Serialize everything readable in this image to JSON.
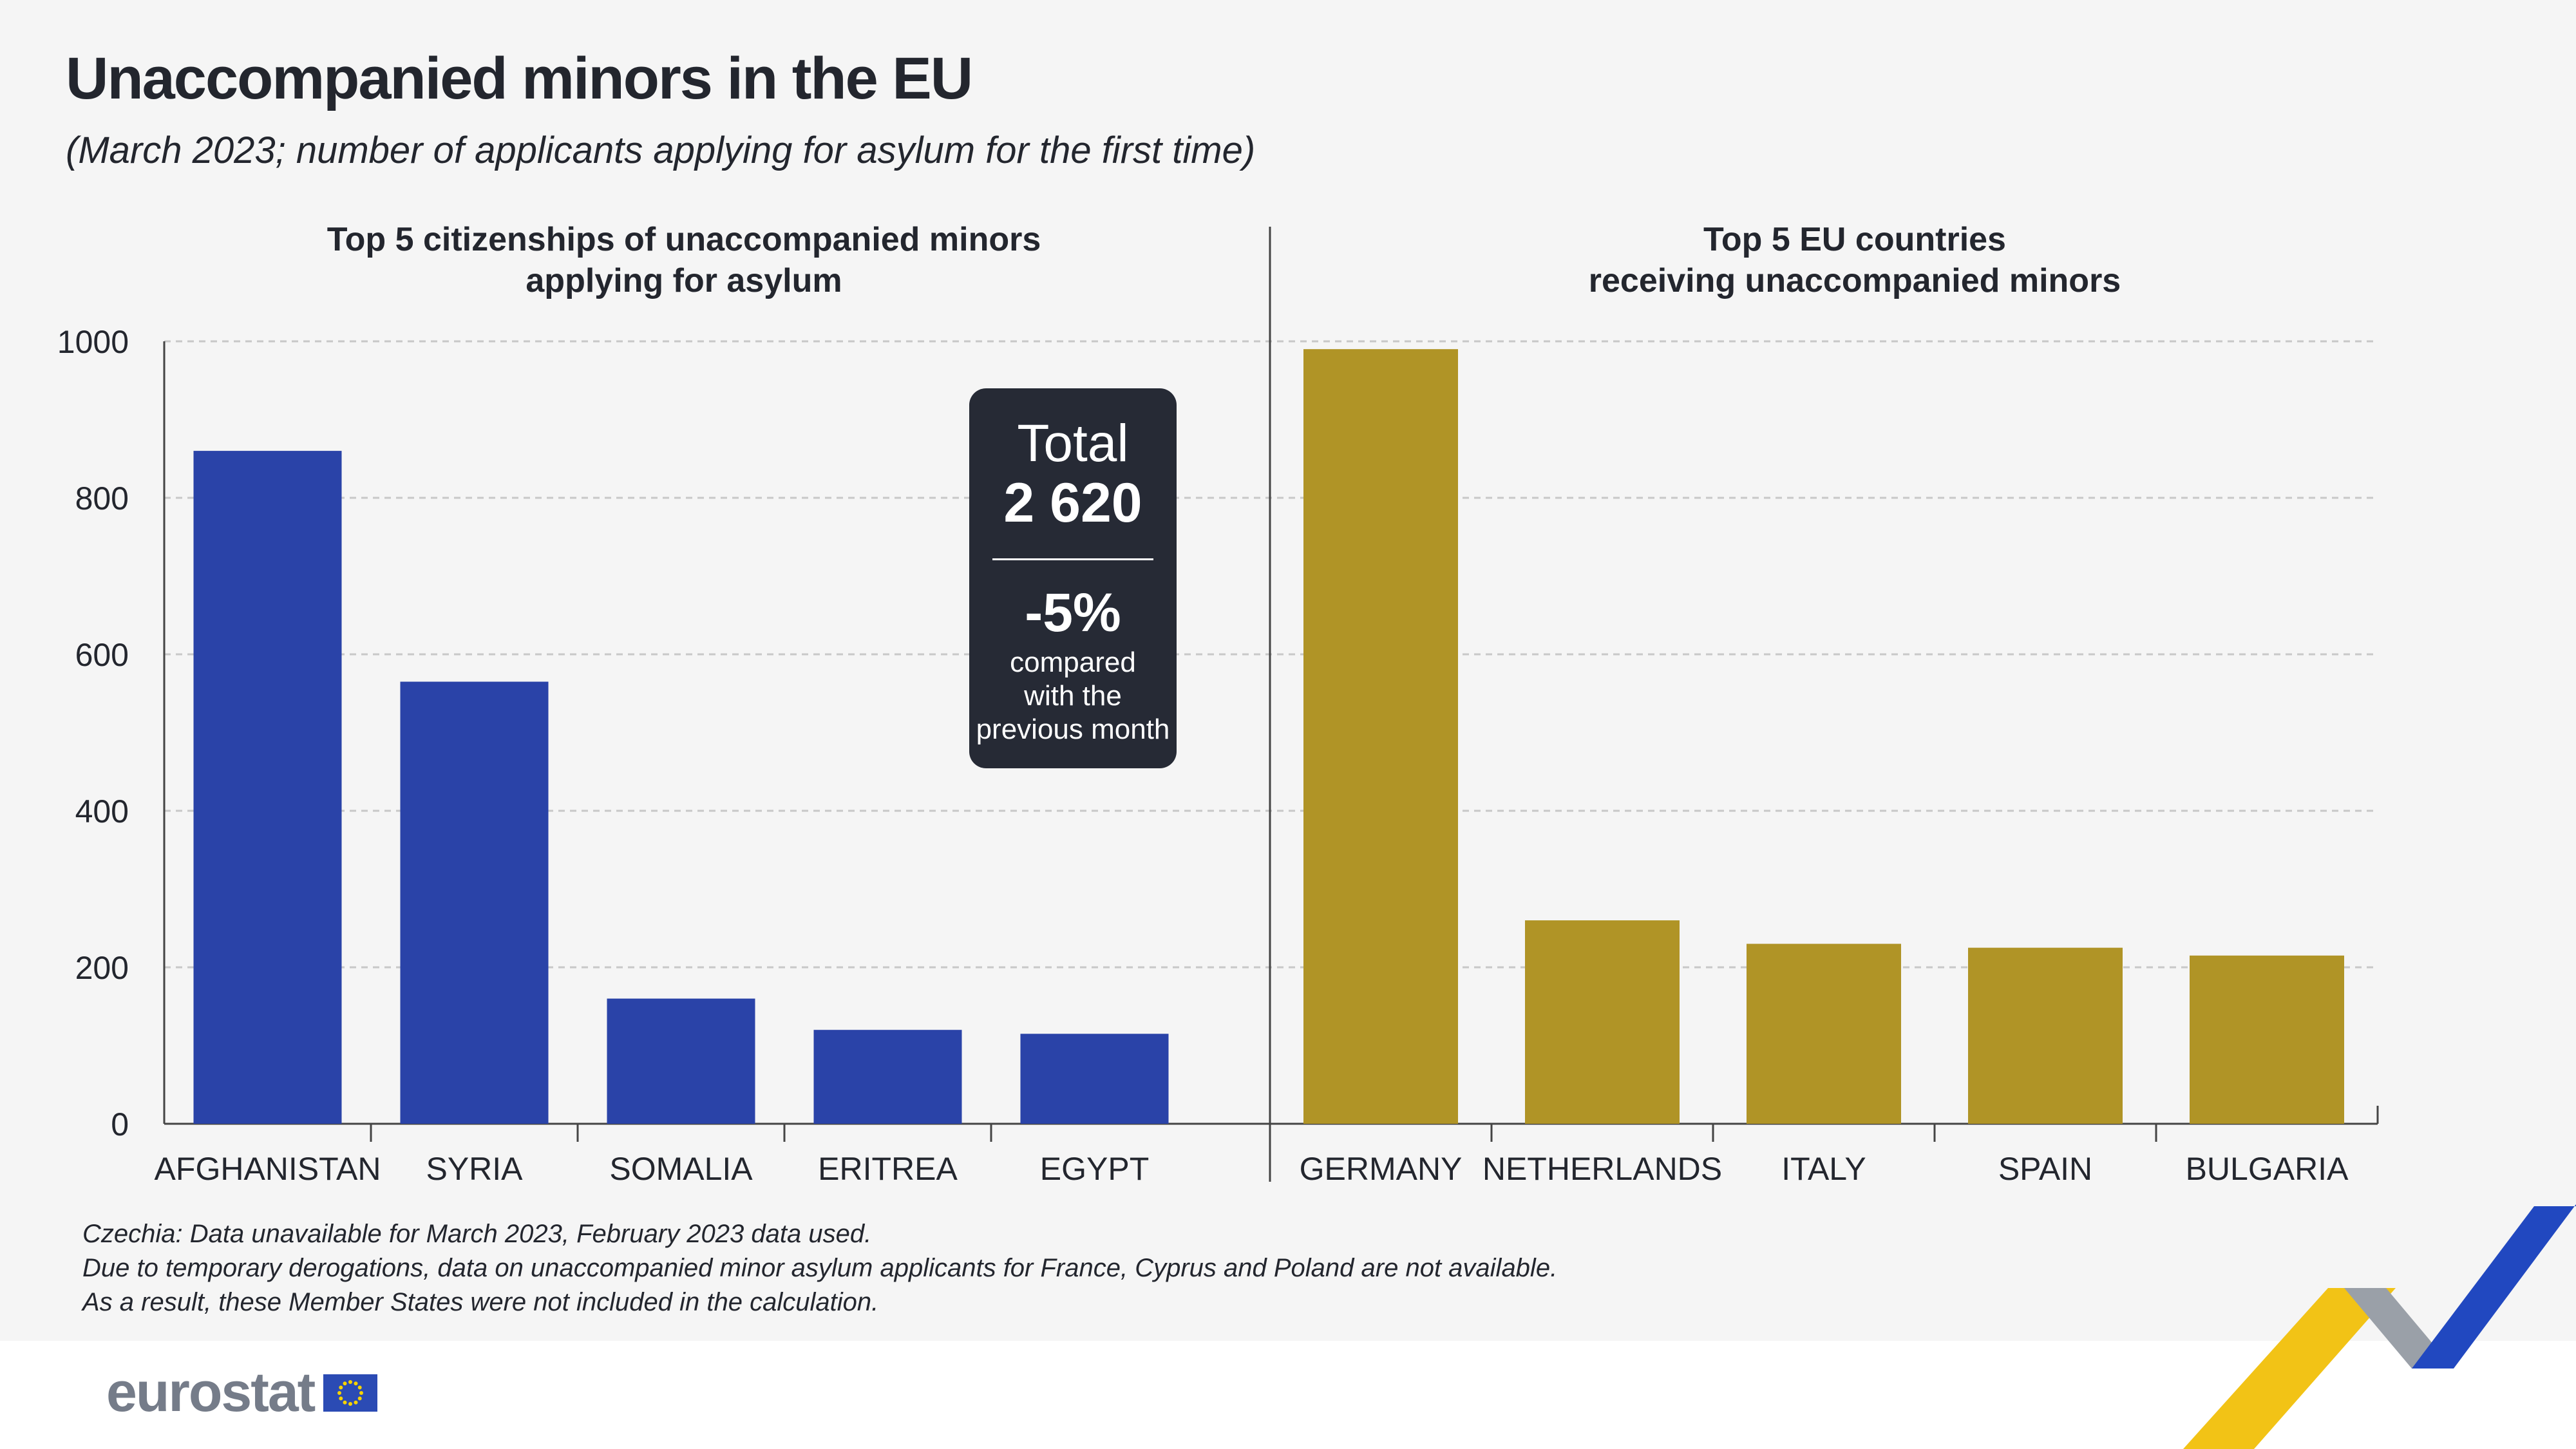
{
  "title": "Unaccompanied minors in the EU",
  "subtitle": "(March 2023; number of applicants applying for asylum for the first time)",
  "chart_data": [
    {
      "type": "bar",
      "title": "Top 5 citizenships of unaccompanied minors applying for asylum",
      "title_lines": [
        "Top 5 citizenships of unaccompanied minors",
        "applying for asylum"
      ],
      "categories": [
        "AFGHANISTAN",
        "SYRIA",
        "SOMALIA",
        "ERITREA",
        "EGYPT"
      ],
      "values": [
        860,
        565,
        160,
        120,
        115
      ],
      "color": "#2a43a8",
      "ylim": [
        0,
        1000
      ],
      "yticks": [
        "0",
        "200",
        "400",
        "600",
        "800",
        "1000"
      ],
      "grid": true
    },
    {
      "type": "bar",
      "title": "Top 5 EU countries receiving unaccompanied minors",
      "title_lines": [
        "Top 5 EU countries",
        "receiving unaccompanied minors"
      ],
      "categories": [
        "GERMANY",
        "NETHERLANDS",
        "ITALY",
        "SPAIN",
        "BULGARIA"
      ],
      "values": [
        990,
        260,
        230,
        225,
        215
      ],
      "color": "#b09426",
      "ylim": [
        0,
        1000
      ],
      "grid": true
    }
  ],
  "total_box": {
    "label": "Total",
    "value": "2 620",
    "change": "-5%",
    "change_line1": "compared",
    "change_line2": "with the",
    "change_line3": "previous month"
  },
  "footnotes": [
    "Czechia: Data unavailable for March 2023, February 2023 data used.",
    "Due to temporary derogations, data on unaccompanied minor asylum applicants for France, Cyprus and Poland are not available.",
    "As a result, these Member States were not included in the calculation."
  ],
  "logo": {
    "text": "eurostat"
  }
}
